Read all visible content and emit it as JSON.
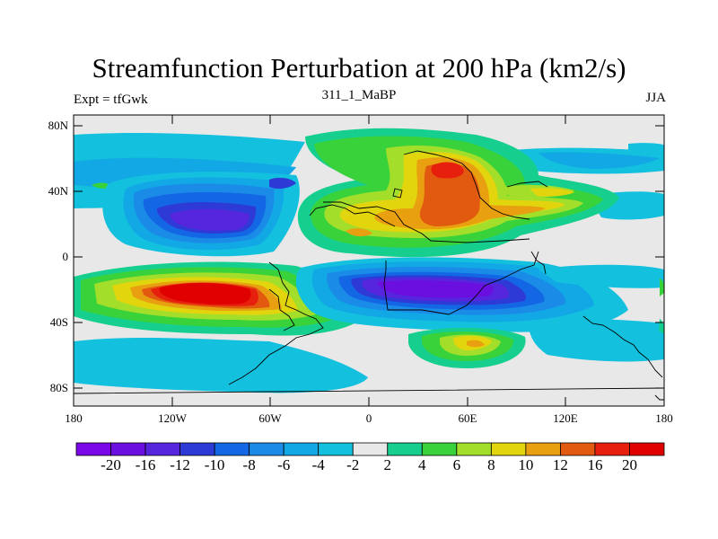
{
  "title": "Streamfunction Perturbation at 200 hPa (km2/s)",
  "experiment": "Expt = tfGwk",
  "case": "311_1_MaBP",
  "season": "JJA",
  "y_axis": [
    "80N",
    "40N",
    "0",
    "40S",
    "80S"
  ],
  "x_axis": [
    "180",
    "120W",
    "60W",
    "0",
    "60E",
    "120E",
    "180"
  ],
  "colorbar": {
    "labels": [
      "-20",
      "-16",
      "-12",
      "-10",
      "-8",
      "-6",
      "-4",
      "-2",
      "2",
      "4",
      "6",
      "8",
      "10",
      "12",
      "16",
      "20"
    ],
    "colors": [
      "#7a08e8",
      "#6a0fe0",
      "#5626de",
      "#2e3ad6",
      "#1467e4",
      "#1a8ce8",
      "#12a8e6",
      "#13c0dd",
      "#e8e8e8",
      "#16cf8e",
      "#39d23b",
      "#a2de2a",
      "#e2d50e",
      "#e8a010",
      "#e25a10",
      "#e6200c",
      "#e00000"
    ]
  }
}
